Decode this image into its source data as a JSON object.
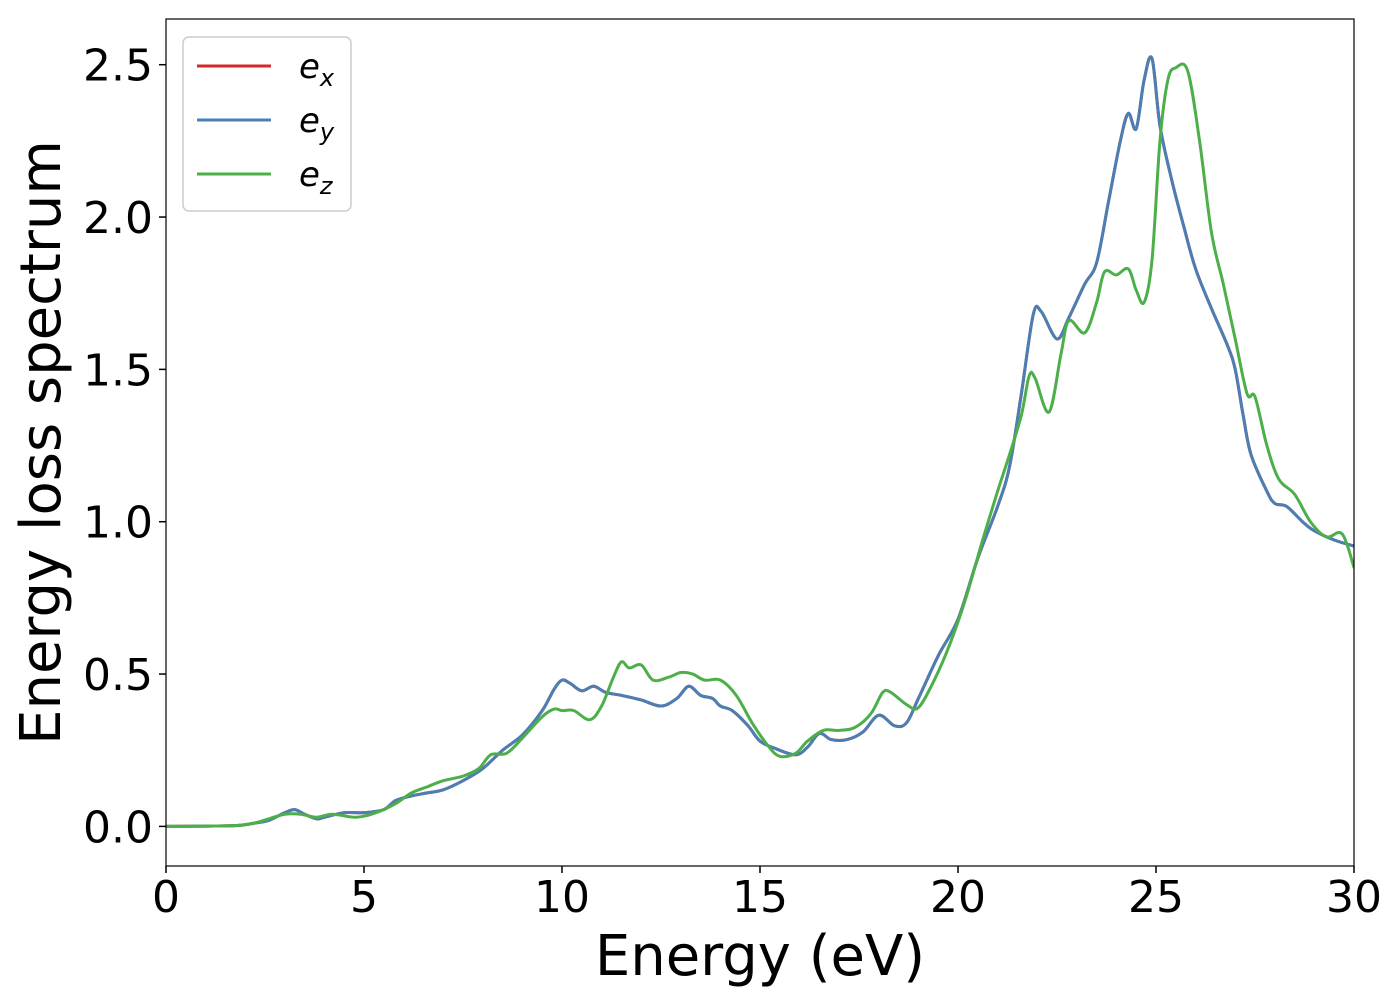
{
  "chart_data": {
    "type": "line",
    "xlabel": "Energy (eV)",
    "ylabel": "Energy loss spectrum",
    "xlim": [
      0,
      30
    ],
    "ylim": [
      -0.13,
      2.65
    ],
    "xticks": [
      0,
      5,
      10,
      15,
      20,
      25,
      30
    ],
    "xtick_labels": [
      "0",
      "5",
      "10",
      "15",
      "20",
      "25",
      "30"
    ],
    "yticks": [
      0.0,
      0.5,
      1.0,
      1.5,
      2.0,
      2.5
    ],
    "ytick_labels": [
      "0.0",
      "0.5",
      "1.0",
      "1.5",
      "2.0",
      "2.5"
    ],
    "grid": false,
    "legend_position": "top-left",
    "series": [
      {
        "name": "e_x",
        "legend_base": "e",
        "legend_sub": "x",
        "color": "#d62728",
        "points": [
          [
            0,
            0
          ],
          [
            1,
            0.001
          ],
          [
            1.8,
            0.003
          ],
          [
            2.2,
            0.01
          ],
          [
            2.6,
            0.02
          ],
          [
            3.0,
            0.045
          ],
          [
            3.25,
            0.055
          ],
          [
            3.5,
            0.04
          ],
          [
            3.8,
            0.025
          ],
          [
            4.0,
            0.03
          ],
          [
            4.5,
            0.045
          ],
          [
            5.0,
            0.045
          ],
          [
            5.5,
            0.055
          ],
          [
            5.8,
            0.085
          ],
          [
            6.2,
            0.1
          ],
          [
            6.6,
            0.11
          ],
          [
            7.0,
            0.12
          ],
          [
            7.5,
            0.15
          ],
          [
            8.0,
            0.19
          ],
          [
            8.5,
            0.25
          ],
          [
            9.0,
            0.3
          ],
          [
            9.5,
            0.38
          ],
          [
            9.8,
            0.45
          ],
          [
            10.0,
            0.48
          ],
          [
            10.2,
            0.47
          ],
          [
            10.5,
            0.445
          ],
          [
            10.8,
            0.46
          ],
          [
            11.1,
            0.44
          ],
          [
            11.5,
            0.43
          ],
          [
            12.0,
            0.415
          ],
          [
            12.5,
            0.395
          ],
          [
            12.9,
            0.42
          ],
          [
            13.2,
            0.46
          ],
          [
            13.5,
            0.43
          ],
          [
            13.8,
            0.42
          ],
          [
            14.0,
            0.395
          ],
          [
            14.3,
            0.38
          ],
          [
            14.7,
            0.33
          ],
          [
            15.0,
            0.28
          ],
          [
            15.4,
            0.255
          ],
          [
            15.9,
            0.235
          ],
          [
            16.2,
            0.26
          ],
          [
            16.5,
            0.305
          ],
          [
            16.8,
            0.285
          ],
          [
            17.2,
            0.285
          ],
          [
            17.6,
            0.31
          ],
          [
            18.0,
            0.365
          ],
          [
            18.4,
            0.33
          ],
          [
            18.7,
            0.34
          ],
          [
            19.0,
            0.42
          ],
          [
            19.5,
            0.56
          ],
          [
            20.0,
            0.68
          ],
          [
            20.5,
            0.88
          ],
          [
            21.0,
            1.05
          ],
          [
            21.3,
            1.18
          ],
          [
            21.6,
            1.42
          ],
          [
            21.9,
            1.68
          ],
          [
            22.1,
            1.69
          ],
          [
            22.5,
            1.6
          ],
          [
            22.8,
            1.67
          ],
          [
            23.2,
            1.78
          ],
          [
            23.5,
            1.85
          ],
          [
            23.8,
            2.05
          ],
          [
            24.1,
            2.25
          ],
          [
            24.3,
            2.34
          ],
          [
            24.5,
            2.29
          ],
          [
            24.7,
            2.45
          ],
          [
            24.9,
            2.52
          ],
          [
            25.1,
            2.3
          ],
          [
            25.4,
            2.12
          ],
          [
            25.7,
            1.97
          ],
          [
            26.0,
            1.83
          ],
          [
            26.4,
            1.7
          ],
          [
            26.8,
            1.58
          ],
          [
            27.0,
            1.5
          ],
          [
            27.2,
            1.35
          ],
          [
            27.4,
            1.22
          ],
          [
            27.8,
            1.1
          ],
          [
            28.0,
            1.06
          ],
          [
            28.3,
            1.05
          ],
          [
            28.7,
            1.0
          ],
          [
            29.0,
            0.97
          ],
          [
            29.5,
            0.94
          ],
          [
            30,
            0.92
          ]
        ]
      },
      {
        "name": "e_y",
        "legend_base": "e",
        "legend_sub": "y",
        "color": "#4a7fb5",
        "points": [
          [
            0,
            0
          ],
          [
            1,
            0.001
          ],
          [
            1.8,
            0.003
          ],
          [
            2.2,
            0.01
          ],
          [
            2.6,
            0.02
          ],
          [
            3.0,
            0.045
          ],
          [
            3.25,
            0.055
          ],
          [
            3.5,
            0.04
          ],
          [
            3.8,
            0.025
          ],
          [
            4.0,
            0.03
          ],
          [
            4.5,
            0.045
          ],
          [
            5.0,
            0.045
          ],
          [
            5.5,
            0.055
          ],
          [
            5.8,
            0.085
          ],
          [
            6.2,
            0.1
          ],
          [
            6.6,
            0.11
          ],
          [
            7.0,
            0.12
          ],
          [
            7.5,
            0.15
          ],
          [
            8.0,
            0.19
          ],
          [
            8.5,
            0.25
          ],
          [
            9.0,
            0.3
          ],
          [
            9.5,
            0.38
          ],
          [
            9.8,
            0.45
          ],
          [
            10.0,
            0.48
          ],
          [
            10.2,
            0.47
          ],
          [
            10.5,
            0.445
          ],
          [
            10.8,
            0.46
          ],
          [
            11.1,
            0.44
          ],
          [
            11.5,
            0.43
          ],
          [
            12.0,
            0.415
          ],
          [
            12.5,
            0.395
          ],
          [
            12.9,
            0.42
          ],
          [
            13.2,
            0.46
          ],
          [
            13.5,
            0.43
          ],
          [
            13.8,
            0.42
          ],
          [
            14.0,
            0.395
          ],
          [
            14.3,
            0.38
          ],
          [
            14.7,
            0.33
          ],
          [
            15.0,
            0.28
          ],
          [
            15.4,
            0.255
          ],
          [
            15.9,
            0.235
          ],
          [
            16.2,
            0.26
          ],
          [
            16.5,
            0.305
          ],
          [
            16.8,
            0.285
          ],
          [
            17.2,
            0.285
          ],
          [
            17.6,
            0.31
          ],
          [
            18.0,
            0.365
          ],
          [
            18.4,
            0.33
          ],
          [
            18.7,
            0.34
          ],
          [
            19.0,
            0.42
          ],
          [
            19.5,
            0.56
          ],
          [
            20.0,
            0.68
          ],
          [
            20.5,
            0.88
          ],
          [
            21.0,
            1.05
          ],
          [
            21.3,
            1.18
          ],
          [
            21.6,
            1.42
          ],
          [
            21.9,
            1.68
          ],
          [
            22.1,
            1.69
          ],
          [
            22.5,
            1.6
          ],
          [
            22.8,
            1.67
          ],
          [
            23.2,
            1.78
          ],
          [
            23.5,
            1.85
          ],
          [
            23.8,
            2.05
          ],
          [
            24.1,
            2.25
          ],
          [
            24.3,
            2.34
          ],
          [
            24.5,
            2.29
          ],
          [
            24.7,
            2.45
          ],
          [
            24.9,
            2.52
          ],
          [
            25.1,
            2.3
          ],
          [
            25.4,
            2.12
          ],
          [
            25.7,
            1.97
          ],
          [
            26.0,
            1.83
          ],
          [
            26.4,
            1.7
          ],
          [
            26.8,
            1.58
          ],
          [
            27.0,
            1.5
          ],
          [
            27.2,
            1.35
          ],
          [
            27.4,
            1.22
          ],
          [
            27.8,
            1.1
          ],
          [
            28.0,
            1.06
          ],
          [
            28.3,
            1.05
          ],
          [
            28.7,
            1.0
          ],
          [
            29.0,
            0.97
          ],
          [
            29.5,
            0.94
          ],
          [
            30,
            0.92
          ]
        ]
      },
      {
        "name": "e_z",
        "legend_base": "e",
        "legend_sub": "z",
        "color": "#4daf4a",
        "points": [
          [
            0,
            0
          ],
          [
            1,
            0.001
          ],
          [
            1.8,
            0.003
          ],
          [
            2.2,
            0.01
          ],
          [
            2.6,
            0.025
          ],
          [
            3.0,
            0.04
          ],
          [
            3.4,
            0.04
          ],
          [
            3.8,
            0.03
          ],
          [
            4.2,
            0.04
          ],
          [
            4.8,
            0.03
          ],
          [
            5.3,
            0.045
          ],
          [
            5.8,
            0.075
          ],
          [
            6.2,
            0.11
          ],
          [
            6.6,
            0.13
          ],
          [
            7.0,
            0.15
          ],
          [
            7.5,
            0.165
          ],
          [
            7.9,
            0.19
          ],
          [
            8.2,
            0.235
          ],
          [
            8.6,
            0.24
          ],
          [
            9.0,
            0.29
          ],
          [
            9.5,
            0.36
          ],
          [
            9.8,
            0.385
          ],
          [
            10.0,
            0.38
          ],
          [
            10.3,
            0.38
          ],
          [
            10.7,
            0.35
          ],
          [
            11.0,
            0.395
          ],
          [
            11.3,
            0.49
          ],
          [
            11.5,
            0.54
          ],
          [
            11.7,
            0.52
          ],
          [
            12.0,
            0.53
          ],
          [
            12.3,
            0.48
          ],
          [
            12.7,
            0.49
          ],
          [
            13.0,
            0.505
          ],
          [
            13.3,
            0.5
          ],
          [
            13.6,
            0.48
          ],
          [
            14.0,
            0.48
          ],
          [
            14.4,
            0.43
          ],
          [
            14.8,
            0.34
          ],
          [
            15.2,
            0.265
          ],
          [
            15.5,
            0.23
          ],
          [
            15.9,
            0.24
          ],
          [
            16.2,
            0.28
          ],
          [
            16.6,
            0.315
          ],
          [
            17.0,
            0.315
          ],
          [
            17.4,
            0.325
          ],
          [
            17.8,
            0.37
          ],
          [
            18.1,
            0.44
          ],
          [
            18.3,
            0.44
          ],
          [
            18.7,
            0.4
          ],
          [
            19.0,
            0.39
          ],
          [
            19.4,
            0.48
          ],
          [
            19.8,
            0.6
          ],
          [
            20.2,
            0.75
          ],
          [
            20.6,
            0.93
          ],
          [
            21.0,
            1.1
          ],
          [
            21.3,
            1.22
          ],
          [
            21.6,
            1.35
          ],
          [
            21.8,
            1.48
          ],
          [
            21.95,
            1.47
          ],
          [
            22.3,
            1.36
          ],
          [
            22.6,
            1.55
          ],
          [
            22.8,
            1.66
          ],
          [
            23.2,
            1.62
          ],
          [
            23.5,
            1.72
          ],
          [
            23.7,
            1.82
          ],
          [
            24.0,
            1.81
          ],
          [
            24.3,
            1.83
          ],
          [
            24.5,
            1.76
          ],
          [
            24.7,
            1.72
          ],
          [
            24.9,
            1.86
          ],
          [
            25.1,
            2.25
          ],
          [
            25.3,
            2.45
          ],
          [
            25.5,
            2.49
          ],
          [
            25.8,
            2.48
          ],
          [
            26.1,
            2.25
          ],
          [
            26.4,
            1.95
          ],
          [
            26.7,
            1.78
          ],
          [
            27.0,
            1.6
          ],
          [
            27.3,
            1.42
          ],
          [
            27.5,
            1.41
          ],
          [
            27.8,
            1.25
          ],
          [
            28.1,
            1.14
          ],
          [
            28.5,
            1.09
          ],
          [
            28.9,
            1.0
          ],
          [
            29.3,
            0.95
          ],
          [
            29.7,
            0.96
          ],
          [
            30,
            0.85
          ]
        ]
      }
    ]
  }
}
